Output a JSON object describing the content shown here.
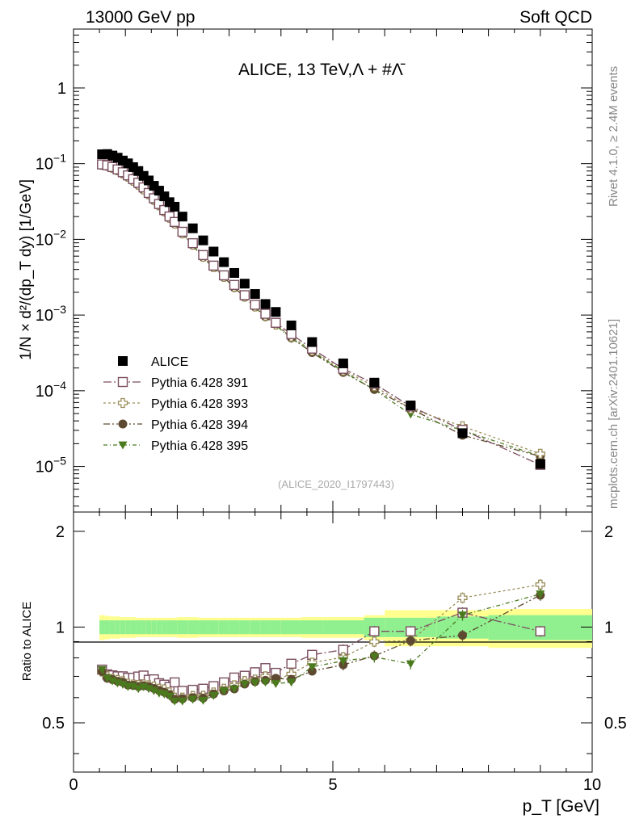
{
  "header": {
    "left": "13000 GeV pp",
    "right": "Soft QCD"
  },
  "side": {
    "rivet": "Rivet 4.1.0, ≥ 2.4M events",
    "mcplots": "mcplots.cern.ch [arXiv:2401.10621]"
  },
  "chart_data": {
    "type": "scatter",
    "title": "ALICE, 13 TeV,Λ + #Λ̄",
    "analysis_id": "(ALICE_2020_I1797443)",
    "xlabel": "p_T [GeV]",
    "ylabel_main": "1/N × d²/(dp_T dy) [1/GeV]",
    "ylabel_ratio": "Ratio to ALICE",
    "xlim": [
      0,
      10
    ],
    "ylim_main": [
      2.5e-06,
      6
    ],
    "ylim_ratio": [
      0.35,
      2.3
    ],
    "x_ticks": [
      "0",
      "5",
      "10"
    ],
    "y_ticks_main": [
      "10^-5",
      "10^-4",
      "10^-3",
      "10^-2",
      "10^-1",
      "1"
    ],
    "y_ticks_ratio": [
      "0.5",
      "1",
      "2"
    ],
    "x": [
      0.55,
      0.65,
      0.75,
      0.85,
      0.95,
      1.05,
      1.15,
      1.25,
      1.35,
      1.45,
      1.55,
      1.65,
      1.75,
      1.85,
      1.95,
      2.1,
      2.3,
      2.5,
      2.7,
      2.9,
      3.1,
      3.3,
      3.5,
      3.7,
      3.9,
      4.2,
      4.6,
      5.2,
      5.8,
      6.5,
      7.5,
      9.0
    ],
    "series": [
      {
        "name": "ALICE",
        "color": "#000000",
        "marker": "square-filled",
        "values": [
          0.133,
          0.134,
          0.128,
          0.12,
          0.11,
          0.101,
          0.09,
          0.08,
          0.069,
          0.06,
          0.051,
          0.044,
          0.037,
          0.031,
          0.027,
          0.02,
          0.014,
          0.0097,
          0.0069,
          0.005,
          0.0036,
          0.0026,
          0.0019,
          0.0014,
          0.0011,
          0.00073,
          0.00044,
          0.00023,
          0.000128,
          6.4e-05,
          2.75e-05,
          1.08e-05
        ]
      },
      {
        "name": "Pythia 6.428 391",
        "color": "#7a4d5f",
        "marker": "square-open",
        "values": [
          0.0977,
          0.0952,
          0.0903,
          0.084,
          0.077,
          0.07,
          0.0624,
          0.0559,
          0.0486,
          0.041,
          0.0349,
          0.0293,
          0.0244,
          0.0201,
          0.017,
          0.0126,
          0.0089,
          0.0062,
          0.0045,
          0.00335,
          0.0025,
          0.00183,
          0.00137,
          0.00104,
          0.00079,
          0.00056,
          0.00036,
          0.000195,
          0.000124,
          6.2e-05,
          3.05e-05,
          1.05e-05
        ]
      },
      {
        "name": "Pythia 6.428 393",
        "color": "#9a8d5a",
        "marker": "cross-open",
        "values": [
          0.0964,
          0.0939,
          0.088,
          0.0818,
          0.0744,
          0.0671,
          0.0594,
          0.0526,
          0.0456,
          0.0394,
          0.0332,
          0.0282,
          0.0236,
          0.0193,
          0.0162,
          0.012,
          0.0085,
          0.0059,
          0.0043,
          0.0032,
          0.00236,
          0.00176,
          0.0013,
          0.00098,
          0.00075,
          0.00052,
          0.00034,
          0.000185,
          0.000115,
          5.8e-05,
          3.4e-05,
          1.47e-05
        ]
      },
      {
        "name": "Pythia 6.428 394",
        "color": "#5e4a30",
        "marker": "circle-filled",
        "values": [
          0.0964,
          0.0925,
          0.0876,
          0.081,
          0.0738,
          0.0664,
          0.059,
          0.052,
          0.0451,
          0.039,
          0.0327,
          0.0278,
          0.0231,
          0.019,
          0.016,
          0.0119,
          0.0084,
          0.0058,
          0.00425,
          0.00315,
          0.0023,
          0.00172,
          0.00128,
          0.00095,
          0.00076,
          0.0005,
          0.00032,
          0.000175,
          0.000104,
          5.8e-05,
          2.59e-05,
          1.36e-05
        ]
      },
      {
        "name": "Pythia 6.428 395",
        "color": "#4b7a1e",
        "marker": "triangle-down-filled",
        "values": [
          0.0977,
          0.0925,
          0.0867,
          0.08,
          0.0726,
          0.0656,
          0.0586,
          0.0512,
          0.0448,
          0.0384,
          0.0322,
          0.0273,
          0.0228,
          0.0188,
          0.0158,
          0.0117,
          0.0083,
          0.0057,
          0.0042,
          0.00315,
          0.0023,
          0.00172,
          0.00127,
          0.00094,
          0.00073,
          0.00049,
          0.00033,
          0.00018,
          0.000103,
          4.9e-05,
          3e-05,
          1.37e-05
        ]
      }
    ],
    "ratio_x": [
      0.55,
      0.65,
      0.75,
      0.85,
      0.95,
      1.05,
      1.15,
      1.25,
      1.35,
      1.45,
      1.55,
      1.65,
      1.75,
      1.85,
      1.95,
      2.1,
      2.3,
      2.5,
      2.7,
      2.9,
      3.1,
      3.3,
      3.5,
      3.7,
      3.9,
      4.2,
      4.6,
      5.2,
      5.8,
      6.5,
      7.5,
      9.0
    ],
    "ratio_series": [
      {
        "name": "Pythia 6.428 391",
        "values": [
          0.735,
          0.71,
          0.705,
          0.7,
          0.7,
          0.693,
          0.693,
          0.699,
          0.704,
          0.683,
          0.685,
          0.666,
          0.659,
          0.648,
          0.67,
          0.63,
          0.635,
          0.64,
          0.652,
          0.67,
          0.694,
          0.703,
          0.721,
          0.743,
          0.718,
          0.767,
          0.818,
          0.848,
          0.97,
          0.97,
          1.11,
          0.97
        ]
      },
      {
        "name": "Pythia 6.428 393",
        "values": [
          0.725,
          0.7,
          0.687,
          0.682,
          0.676,
          0.664,
          0.66,
          0.658,
          0.66,
          0.656,
          0.65,
          0.64,
          0.637,
          0.623,
          0.6,
          0.6,
          0.607,
          0.608,
          0.623,
          0.64,
          0.656,
          0.677,
          0.684,
          0.7,
          0.681,
          0.712,
          0.773,
          0.804,
          0.9,
          0.906,
          1.236,
          1.36
        ]
      },
      {
        "name": "Pythia 6.428 394",
        "values": [
          0.725,
          0.69,
          0.684,
          0.675,
          0.671,
          0.657,
          0.656,
          0.65,
          0.654,
          0.65,
          0.641,
          0.632,
          0.624,
          0.613,
          0.593,
          0.595,
          0.6,
          0.598,
          0.616,
          0.63,
          0.639,
          0.662,
          0.674,
          0.68,
          0.69,
          0.685,
          0.727,
          0.761,
          0.812,
          0.906,
          0.942,
          1.26
        ]
      },
      {
        "name": "Pythia 6.428 395",
        "values": [
          0.735,
          0.69,
          0.677,
          0.667,
          0.66,
          0.65,
          0.651,
          0.64,
          0.649,
          0.64,
          0.631,
          0.62,
          0.616,
          0.606,
          0.585,
          0.585,
          0.593,
          0.588,
          0.609,
          0.63,
          0.639,
          0.662,
          0.668,
          0.671,
          0.664,
          0.671,
          0.75,
          0.783,
          0.805,
          0.766,
          1.09,
          1.27
        ]
      }
    ],
    "band_edges": [
      0.5,
      0.6,
      0.7,
      0.8,
      0.9,
      1.0,
      1.1,
      1.2,
      1.3,
      1.4,
      1.5,
      1.6,
      1.7,
      1.8,
      1.9,
      2.0,
      2.2,
      2.4,
      2.6,
      2.8,
      3.0,
      3.2,
      3.4,
      3.6,
      3.8,
      4.0,
      4.4,
      4.8,
      5.6,
      6.0,
      7.0,
      8.0,
      10.0
    ],
    "band_stat_half": [
      0.05,
      0.05,
      0.05,
      0.05,
      0.05,
      0.05,
      0.05,
      0.05,
      0.05,
      0.05,
      0.05,
      0.05,
      0.05,
      0.05,
      0.05,
      0.05,
      0.05,
      0.05,
      0.05,
      0.05,
      0.05,
      0.05,
      0.05,
      0.05,
      0.05,
      0.05,
      0.05,
      0.05,
      0.07,
      0.07,
      0.08,
      0.09,
      0.1
    ],
    "band_tot_half": [
      0.09,
      0.085,
      0.08,
      0.08,
      0.075,
      0.075,
      0.075,
      0.07,
      0.07,
      0.07,
      0.07,
      0.07,
      0.07,
      0.07,
      0.07,
      0.075,
      0.075,
      0.07,
      0.07,
      0.07,
      0.07,
      0.07,
      0.07,
      0.07,
      0.07,
      0.07,
      0.075,
      0.075,
      0.09,
      0.13,
      0.13,
      0.14,
      0.16
    ]
  },
  "colors": {
    "band_stat": "#90f090",
    "band_total": "#ffff90",
    "axis": "#000000"
  }
}
